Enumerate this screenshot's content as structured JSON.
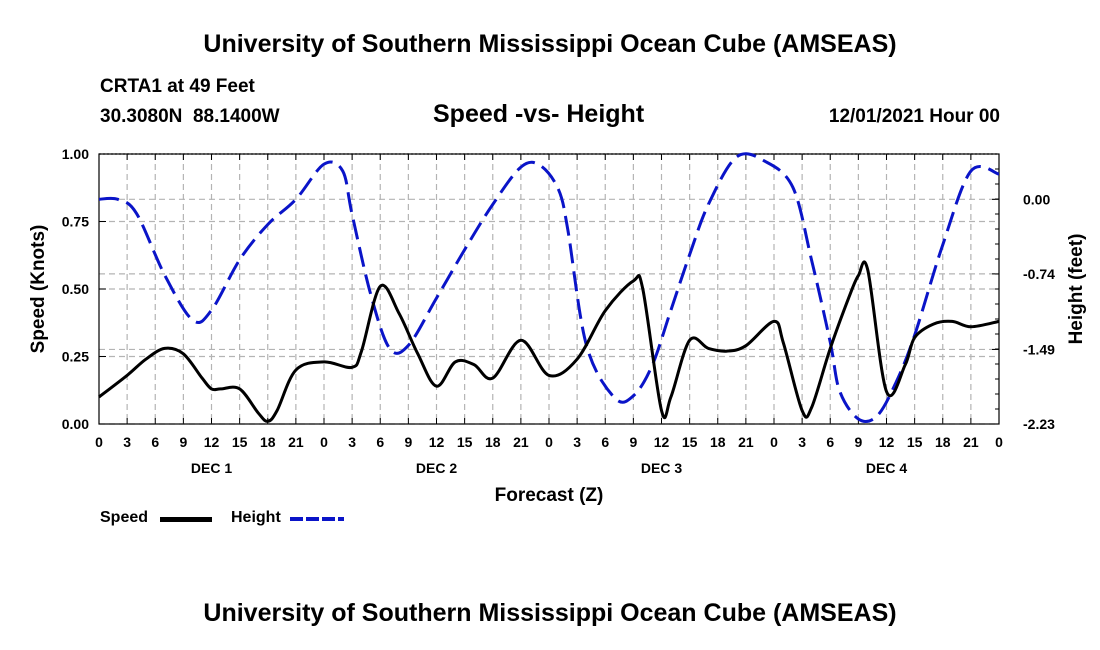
{
  "header": {
    "title": "University of Southern Mississippi Ocean Cube (AMSEAS)",
    "station": "CRTA1 at 49 Feet",
    "coords": "30.3080N  88.1400W",
    "subtitle": "Speed -vs- Height",
    "datetime": "12/01/2021 Hour 00"
  },
  "footer": {
    "title": "University of Southern Mississippi Ocean Cube (AMSEAS)"
  },
  "legend": {
    "speed_label": "Speed",
    "height_label": "Height"
  },
  "colors": {
    "speed": "#000000",
    "height": "#0a14c8",
    "grid": "#b4b4b4"
  },
  "chart_data": {
    "type": "line",
    "title": "Speed -vs- Height",
    "xlabel": "Forecast (Z)",
    "ylabel": "Speed (Knots)",
    "y2label": "Height (feet)",
    "xlim": [
      0,
      96
    ],
    "ylim": [
      0,
      1.0
    ],
    "y2lim": [
      -2.23,
      0.45
    ],
    "x_tick_step": 3,
    "x_tick_labels": [
      "0",
      "3",
      "6",
      "9",
      "12",
      "15",
      "18",
      "21",
      "0",
      "3",
      "6",
      "9",
      "12",
      "15",
      "18",
      "21",
      "0",
      "3",
      "6",
      "9",
      "12",
      "15",
      "18",
      "21",
      "0",
      "3",
      "6",
      "9",
      "12",
      "15",
      "18",
      "21",
      "0"
    ],
    "day_labels": [
      {
        "label": "DEC 1",
        "x": 12
      },
      {
        "label": "DEC 2",
        "x": 36
      },
      {
        "label": "DEC 3",
        "x": 60
      },
      {
        "label": "DEC 4",
        "x": 84
      }
    ],
    "y_ticks": [
      "0.00",
      "0.25",
      "0.50",
      "0.75",
      "1.00"
    ],
    "y_tick_values": [
      0,
      0.25,
      0.5,
      0.75,
      1.0
    ],
    "y2_ticks": [
      "0.00",
      "-0.74",
      "-1.49",
      "-2.23"
    ],
    "y2_tick_values": [
      0,
      -0.74,
      -1.49,
      -2.23
    ],
    "series": [
      {
        "name": "Speed",
        "axis": "left",
        "style": "solid",
        "x": [
          0,
          3,
          5,
          7,
          9,
          11,
          12,
          13,
          15,
          17,
          18,
          19,
          21,
          24,
          27,
          28,
          30,
          32,
          34,
          36,
          38,
          40,
          42,
          45,
          48,
          51,
          54,
          57,
          58,
          60,
          61,
          63,
          65,
          67,
          69,
          72,
          73,
          75,
          76,
          78,
          80,
          81,
          82,
          84,
          86,
          87,
          89,
          91,
          93,
          96
        ],
        "y": [
          0.1,
          0.18,
          0.24,
          0.28,
          0.26,
          0.17,
          0.13,
          0.13,
          0.13,
          0.04,
          0.01,
          0.05,
          0.2,
          0.23,
          0.21,
          0.27,
          0.51,
          0.41,
          0.26,
          0.14,
          0.23,
          0.22,
          0.17,
          0.31,
          0.18,
          0.24,
          0.42,
          0.53,
          0.5,
          0.05,
          0.1,
          0.31,
          0.28,
          0.27,
          0.29,
          0.38,
          0.3,
          0.05,
          0.06,
          0.28,
          0.47,
          0.55,
          0.57,
          0.12,
          0.22,
          0.32,
          0.37,
          0.38,
          0.36,
          0.38
        ]
      },
      {
        "name": "Height",
        "axis": "right",
        "style": "dashed",
        "x": [
          0,
          2,
          4,
          7,
          10,
          12,
          15,
          18,
          21,
          24,
          26,
          27,
          29,
          31,
          33,
          36,
          39,
          42,
          45,
          47,
          49,
          50,
          52,
          55,
          57,
          59,
          61,
          63,
          65,
          68,
          71,
          74,
          76,
          78,
          79,
          81,
          83,
          85,
          87,
          90,
          93,
          96
        ],
        "y": [
          0.0,
          0.0,
          -0.14,
          -0.75,
          -1.2,
          -1.1,
          -0.6,
          -0.25,
          0.0,
          0.35,
          0.28,
          -0.15,
          -0.95,
          -1.48,
          -1.45,
          -0.98,
          -0.5,
          -0.05,
          0.32,
          0.34,
          0.1,
          -0.3,
          -1.45,
          -1.97,
          -1.95,
          -1.65,
          -1.1,
          -0.55,
          -0.05,
          0.42,
          0.38,
          0.12,
          -0.6,
          -1.42,
          -1.9,
          -2.18,
          -2.15,
          -1.82,
          -1.35,
          -0.45,
          0.28,
          0.25
        ]
      }
    ]
  }
}
